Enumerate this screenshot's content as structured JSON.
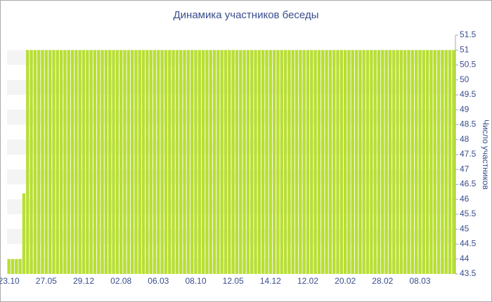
{
  "chart_data": {
    "type": "bar",
    "title": "Динамика участников беседы",
    "y_label": "Число участников",
    "categories": [
      "23.10",
      null,
      null,
      null,
      null,
      null,
      null,
      null,
      null,
      null,
      "27.05",
      null,
      null,
      null,
      null,
      null,
      null,
      null,
      null,
      null,
      "29.12",
      null,
      null,
      null,
      null,
      null,
      null,
      null,
      null,
      null,
      "02.08",
      null,
      null,
      null,
      null,
      null,
      null,
      null,
      null,
      null,
      "06.03",
      null,
      null,
      null,
      null,
      null,
      null,
      null,
      null,
      null,
      "08.10",
      null,
      null,
      null,
      null,
      null,
      null,
      null,
      null,
      null,
      "12.05",
      null,
      null,
      null,
      null,
      null,
      null,
      null,
      null,
      null,
      "14.12",
      null,
      null,
      null,
      null,
      null,
      null,
      null,
      null,
      null,
      "12.02",
      null,
      null,
      null,
      null,
      null,
      null,
      null,
      null,
      null,
      "20.02",
      null,
      null,
      null,
      null,
      null,
      null,
      null,
      null,
      null,
      "28.02",
      null,
      null,
      null,
      null,
      null,
      null,
      null,
      null,
      null,
      "08.03",
      null,
      null,
      null,
      null,
      null,
      null,
      null,
      null,
      null
    ],
    "values": [
      44,
      44,
      44,
      44,
      46.2,
      51,
      51,
      51,
      51,
      51,
      51,
      51,
      51,
      51,
      51,
      51,
      51,
      51,
      51,
      51,
      51,
      51,
      51,
      51,
      51,
      51,
      51,
      51,
      51,
      51,
      51,
      51,
      51,
      51,
      51,
      51,
      51,
      51,
      51,
      51,
      51,
      51,
      51,
      51,
      51,
      51,
      51,
      51,
      51,
      51,
      51,
      51,
      51,
      51,
      51,
      51,
      51,
      51,
      51,
      51,
      51,
      51,
      51,
      51,
      51,
      51,
      51,
      51,
      51,
      51,
      51,
      51,
      51,
      51,
      51,
      51,
      51,
      51,
      51,
      51,
      51,
      51,
      51,
      51,
      51,
      51,
      51,
      51,
      51,
      51,
      51,
      51,
      51,
      51,
      51,
      51,
      51,
      51,
      51,
      51,
      51,
      51,
      51,
      51,
      51,
      51,
      51,
      51,
      51,
      51,
      51,
      51,
      51,
      51,
      51,
      51,
      51,
      51,
      51,
      51
    ],
    "color": "#b8df32",
    "ylim": [
      43.5,
      51.5
    ],
    "yticks": [
      43.5,
      44,
      44.5,
      45,
      45.5,
      46,
      46.5,
      47,
      47.5,
      48,
      48.5,
      49,
      49.5,
      50,
      50.5,
      51,
      51.5
    ],
    "grid": true
  }
}
